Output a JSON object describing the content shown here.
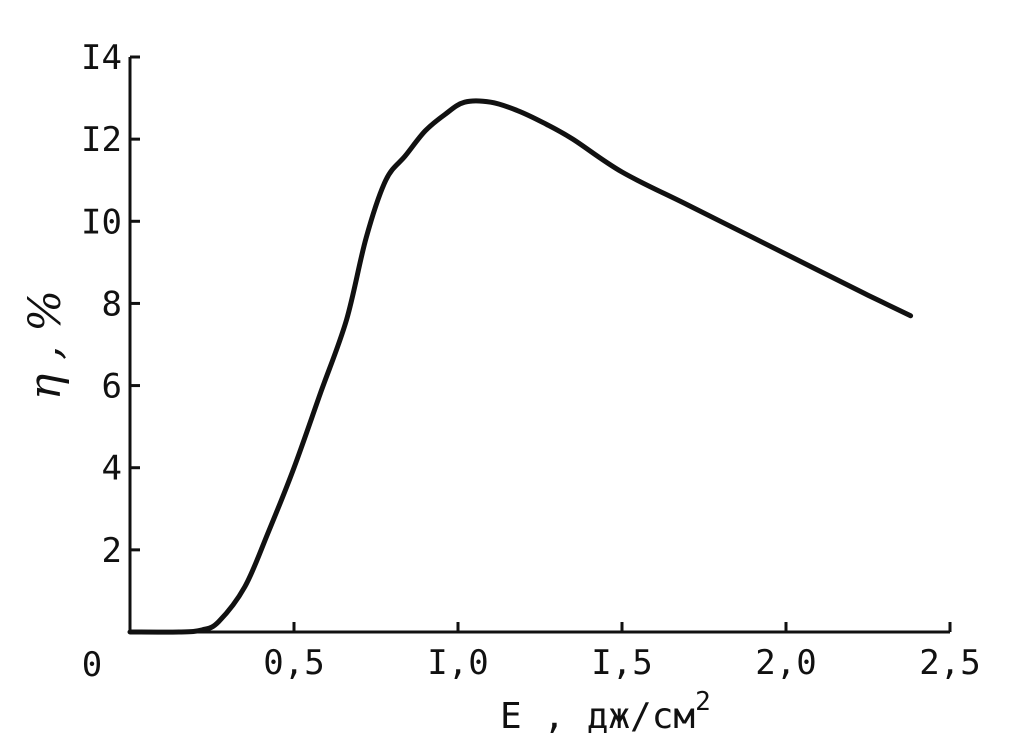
{
  "chart_data": {
    "type": "line",
    "title": "",
    "xlabel": "E ,  дж/см",
    "xlabel_superscript": "2",
    "ylabel": "η , %",
    "xlim": [
      0,
      2.5
    ],
    "ylim": [
      0,
      14
    ],
    "origin_label": "0",
    "x_ticks": [
      {
        "value": 0.5,
        "label": "0,5"
      },
      {
        "value": 1.0,
        "label": "I,0"
      },
      {
        "value": 1.5,
        "label": "I,5"
      },
      {
        "value": 2.0,
        "label": "2,0"
      },
      {
        "value": 2.5,
        "label": "2,5"
      }
    ],
    "y_ticks": [
      {
        "value": 2,
        "label": "2"
      },
      {
        "value": 4,
        "label": "4"
      },
      {
        "value": 6,
        "label": "6"
      },
      {
        "value": 8,
        "label": "8"
      },
      {
        "value": 10,
        "label": "I0"
      },
      {
        "value": 12,
        "label": "I2"
      },
      {
        "value": 14,
        "label": "I4"
      }
    ],
    "grid": false,
    "series": [
      {
        "x": [
          0.0,
          0.15,
          0.22,
          0.27,
          0.35,
          0.42,
          0.5,
          0.58,
          0.66,
          0.72,
          0.78,
          0.84,
          0.9,
          0.96,
          1.02,
          1.1,
          1.18,
          1.26,
          1.35,
          1.5,
          1.7,
          1.9,
          2.1,
          2.25,
          2.38
        ],
        "y": [
          0.0,
          0.0,
          0.05,
          0.25,
          1.1,
          2.4,
          4.0,
          5.8,
          7.6,
          9.6,
          11.0,
          11.6,
          12.2,
          12.6,
          12.9,
          12.9,
          12.7,
          12.4,
          12.0,
          11.2,
          10.4,
          9.6,
          8.8,
          8.2,
          7.7
        ]
      }
    ]
  }
}
